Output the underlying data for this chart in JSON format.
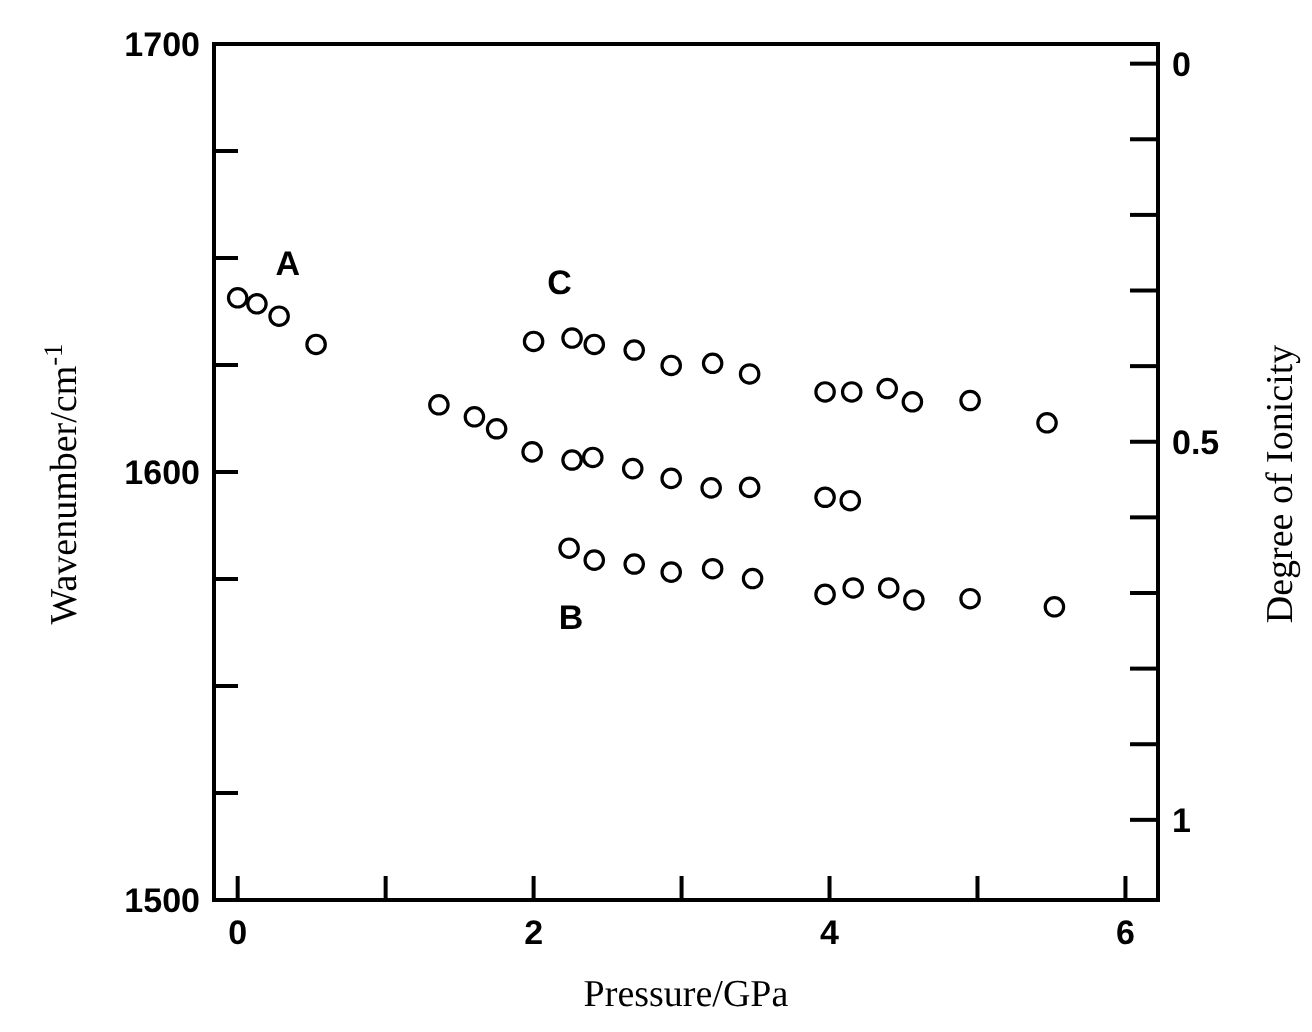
{
  "chart_data": {
    "type": "scatter",
    "xlabel": "Pressure/GPa",
    "ylabel": "Wavenumber/cm$^{-1}$",
    "y2label": "Degree of Ionicity",
    "xlim": [
      -0.16,
      6.22
    ],
    "xticks": [
      0,
      {
        "value": 1,
        "label": null
      },
      2,
      {
        "value": 3,
        "label": null
      },
      4,
      {
        "value": 5,
        "label": null
      },
      6
    ],
    "ylim": [
      1500,
      1700
    ],
    "yticks": [
      1500,
      {
        "value": 1525,
        "label": null
      },
      {
        "value": 1550,
        "label": null
      },
      {
        "value": 1575,
        "label": null
      },
      1600,
      {
        "value": 1625,
        "label": null
      },
      {
        "value": 1650,
        "label": null
      },
      {
        "value": 1675,
        "label": null
      },
      1700
    ],
    "y2lim": [
      1.106,
      -0.026
    ],
    "y2ticks": [
      0,
      {
        "value": 0.1,
        "label": null
      },
      {
        "value": 0.2,
        "label": null
      },
      {
        "value": 0.3,
        "label": null
      },
      {
        "value": 0.4,
        "label": null
      },
      0.5,
      {
        "value": 0.6,
        "label": null
      },
      {
        "value": 0.7,
        "label": null
      },
      {
        "value": 0.8,
        "label": null
      },
      {
        "value": 0.9,
        "label": null
      },
      1
    ],
    "marker": "circle",
    "grid": false,
    "series": [
      {
        "name": "A",
        "color": "#000000",
        "x": [
          0,
          0.13,
          0.28,
          0.53,
          1.36,
          1.6,
          1.75,
          1.99,
          2.26,
          2.4,
          2.67,
          2.93,
          3.2,
          3.46,
          3.97,
          4.14
        ],
        "values": [
          1640.7,
          1639.3,
          1636.4,
          1629.8,
          1615.7,
          1612.9,
          1610.1,
          1604.7,
          1602.8,
          1603.4,
          1600.8,
          1598.5,
          1596.3,
          1596.4,
          1594.1,
          1593.3
        ]
      },
      {
        "name": "C",
        "color": "#000000",
        "x": [
          2.0,
          2.26,
          2.41,
          2.68,
          2.93,
          3.21,
          3.46,
          3.97,
          4.15,
          4.39,
          4.56,
          4.95,
          5.47
        ],
        "values": [
          1630.5,
          1631.3,
          1629.8,
          1628.5,
          1624.9,
          1625.4,
          1622.9,
          1618.7,
          1618.7,
          1619.5,
          1616.4,
          1616.7,
          1611.5
        ]
      },
      {
        "name": "B",
        "color": "#000000",
        "x": [
          2.24,
          2.41,
          2.68,
          2.93,
          3.21,
          3.48,
          3.97,
          4.16,
          4.4,
          4.57,
          4.95,
          5.52
        ],
        "values": [
          1582.2,
          1579.4,
          1578.5,
          1576.6,
          1577.4,
          1575.1,
          1571.4,
          1572.9,
          1572.9,
          1570.1,
          1570.4,
          1568.5
        ]
      }
    ]
  }
}
